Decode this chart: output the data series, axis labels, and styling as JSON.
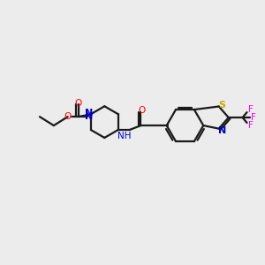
{
  "background_color": "#ececec",
  "bond_color": "#1a1a1a",
  "bond_width": 1.6,
  "atom_colors": {
    "O": "#ff0000",
    "N": "#0000cc",
    "S": "#ccaa00",
    "F": "#ff00ff",
    "C": "#1a1a1a"
  },
  "figsize": [
    3.0,
    3.0
  ],
  "dpi": 100
}
